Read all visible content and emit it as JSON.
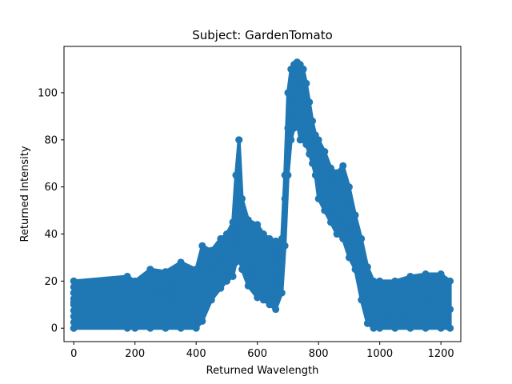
{
  "chart_data": {
    "type": "line",
    "title": "Subject: GardenTomato",
    "xlabel": "Returned Wavelength",
    "ylabel": "Returned Intensity",
    "xlim": [
      -32,
      1265
    ],
    "ylim": [
      -5.7,
      119.7
    ],
    "xticks": [
      0,
      200,
      400,
      600,
      800,
      1000,
      1200
    ],
    "yticks": [
      0,
      20,
      40,
      60,
      80,
      100
    ],
    "grid": false,
    "legend": "none",
    "series": [
      {
        "marker": "circle",
        "color": "#1f77b4",
        "x": [
          0,
          175,
          200,
          250,
          300,
          350,
          400,
          420,
          450,
          480,
          500,
          520,
          530,
          540,
          550,
          570,
          600,
          620,
          640,
          660,
          680,
          690,
          700,
          710,
          720,
          730,
          740,
          750,
          760,
          770,
          780,
          790,
          800,
          820,
          840,
          860,
          880,
          900,
          920,
          940,
          960,
          980,
          1000,
          1050,
          1100,
          1150,
          1200,
          1230
        ],
        "y": [
          11,
          5,
          8,
          10,
          10,
          11,
          12,
          15,
          22,
          25,
          28,
          33,
          50,
          80,
          45,
          38,
          33,
          27,
          25,
          24,
          28,
          55,
          85,
          95,
          105,
          113,
          108,
          110,
          98,
          90,
          84,
          80,
          75,
          68,
          60,
          55,
          58,
          47,
          40,
          28,
          18,
          10,
          7,
          8,
          8,
          8,
          8,
          8
        ],
        "band_low": [
          0,
          0,
          0,
          0,
          0,
          0,
          0,
          3,
          12,
          17,
          20,
          22,
          28,
          30,
          25,
          18,
          13,
          12,
          10,
          8,
          15,
          35,
          65,
          80,
          85,
          88,
          80,
          80,
          78,
          74,
          70,
          65,
          55,
          50,
          45,
          40,
          38,
          30,
          25,
          12,
          2,
          0,
          0,
          0,
          0,
          0,
          0,
          0
        ],
        "band_high": [
          20,
          22,
          20,
          25,
          24,
          28,
          25,
          35,
          33,
          38,
          40,
          45,
          65,
          80,
          55,
          46,
          44,
          40,
          38,
          37,
          38,
          65,
          100,
          110,
          112,
          113,
          112,
          110,
          104,
          96,
          88,
          82,
          80,
          75,
          68,
          66,
          69,
          60,
          48,
          38,
          26,
          20,
          20,
          20,
          22,
          23,
          23,
          20
        ]
      }
    ]
  }
}
